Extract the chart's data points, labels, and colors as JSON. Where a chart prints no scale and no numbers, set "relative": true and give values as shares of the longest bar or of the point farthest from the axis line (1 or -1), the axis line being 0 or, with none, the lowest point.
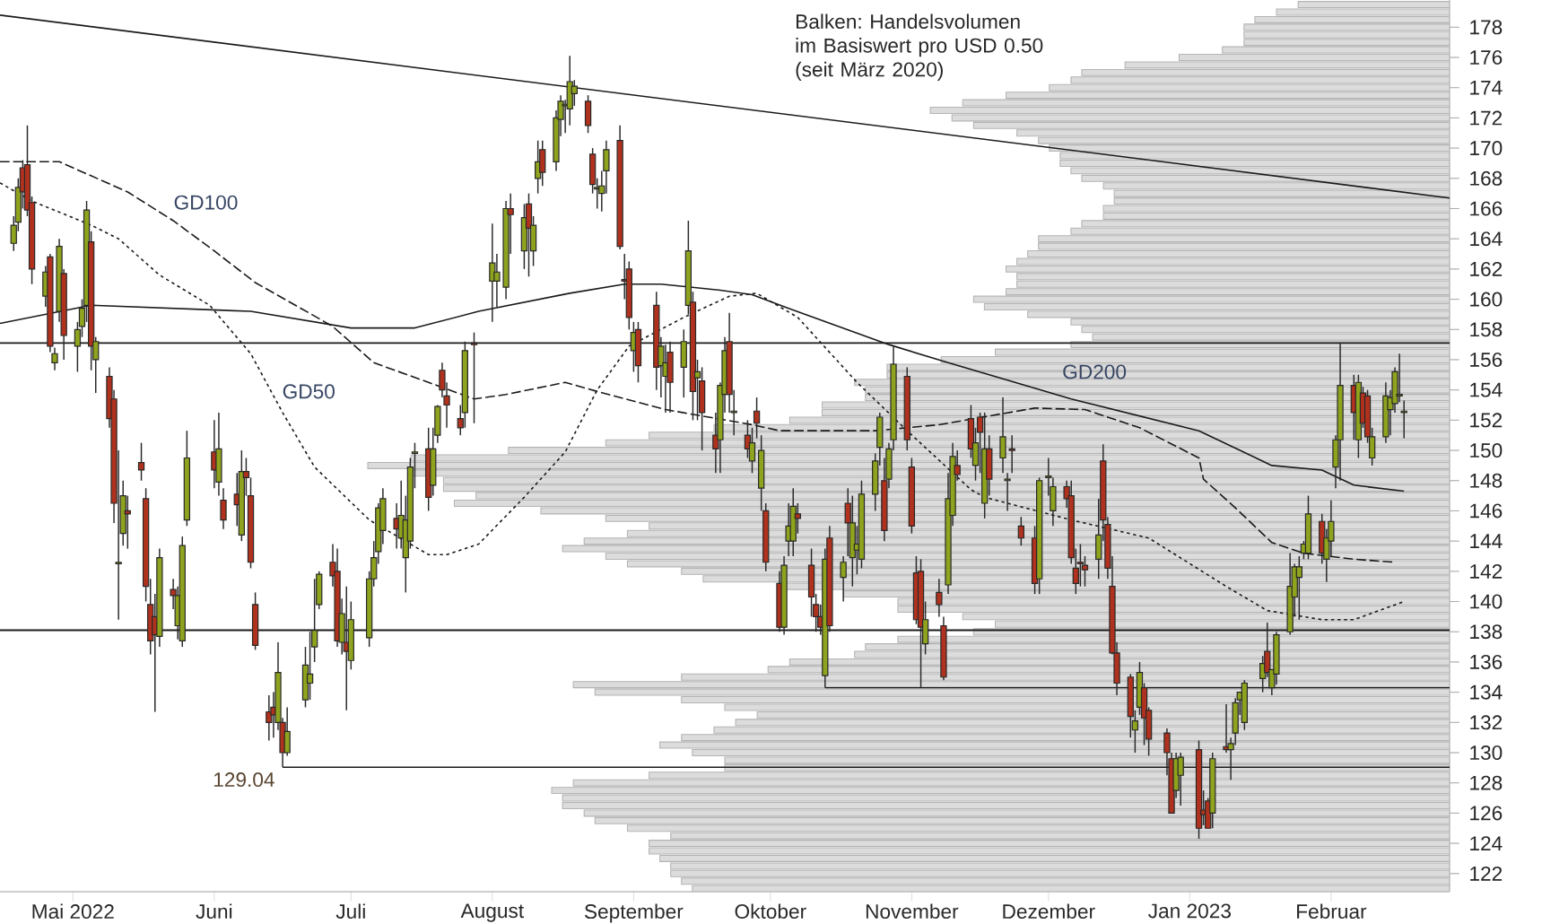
{
  "chart_data": [
    {
      "type": "candlestick",
      "x": [
        "2022-04-18",
        "2022-04-19",
        "2022-04-20",
        "2022-04-21",
        "2022-04-22",
        "2022-04-25",
        "2022-04-26",
        "2022-04-27",
        "2022-04-28",
        "2022-04-29",
        "2022-05-02",
        "2022-05-03",
        "2022-05-04",
        "2022-05-05",
        "2022-05-06",
        "2022-05-09",
        "2022-05-10",
        "2022-05-11",
        "2022-05-12",
        "2022-05-13",
        "2022-05-16",
        "2022-05-17",
        "2022-05-18",
        "2022-05-19",
        "2022-05-20",
        "2022-05-23",
        "2022-05-24",
        "2022-05-25",
        "2022-05-26",
        "2022-06-01",
        "2022-06-02",
        "2022-06-03",
        "2022-06-06",
        "2022-06-07",
        "2022-06-08",
        "2022-06-09",
        "2022-06-10",
        "2022-06-13",
        "2022-06-14",
        "2022-06-15",
        "2022-06-16",
        "2022-06-17",
        "2022-06-21",
        "2022-06-22",
        "2022-06-23",
        "2022-06-24",
        "2022-06-27",
        "2022-06-28",
        "2022-06-29",
        "2022-06-30",
        "2022-07-01",
        "2022-07-05",
        "2022-07-06",
        "2022-07-07",
        "2022-07-08",
        "2022-07-11",
        "2022-07-12",
        "2022-07-13",
        "2022-07-14",
        "2022-07-15",
        "2022-07-18",
        "2022-07-19",
        "2022-07-20",
        "2022-07-21",
        "2022-07-22",
        "2022-07-25",
        "2022-07-26",
        "2022-07-28",
        "2022-08-01",
        "2022-08-02",
        "2022-08-04",
        "2022-08-05",
        "2022-08-08",
        "2022-08-09",
        "2022-08-10",
        "2022-08-11",
        "2022-08-12",
        "2022-08-15",
        "2022-08-16",
        "2022-08-17",
        "2022-08-18",
        "2022-08-19",
        "2022-08-22",
        "2022-08-23",
        "2022-08-24",
        "2022-08-25",
        "2022-08-26",
        "2022-08-29",
        "2022-08-30",
        "2022-08-31",
        "2022-09-01",
        "2022-09-02",
        "2022-09-06",
        "2022-09-07",
        "2022-09-08",
        "2022-09-09",
        "2022-09-12",
        "2022-09-13",
        "2022-09-14",
        "2022-09-15",
        "2022-09-16",
        "2022-09-19",
        "2022-09-20",
        "2022-09-21",
        "2022-09-22",
        "2022-09-23",
        "2022-09-26",
        "2022-09-27",
        "2022-09-28",
        "2022-09-29",
        "2022-09-30",
        "2022-10-03",
        "2022-10-04",
        "2022-10-05",
        "2022-10-06",
        "2022-10-07",
        "2022-10-10",
        "2022-10-11",
        "2022-10-12",
        "2022-10-13",
        "2022-10-14",
        "2022-10-17",
        "2022-10-18",
        "2022-10-19",
        "2022-10-20",
        "2022-10-21",
        "2022-10-24",
        "2022-10-25",
        "2022-10-26",
        "2022-10-27",
        "2022-10-28",
        "2022-10-31",
        "2022-11-01",
        "2022-11-02",
        "2022-11-03",
        "2022-11-04",
        "2022-11-07",
        "2022-11-08",
        "2022-11-09",
        "2022-11-10",
        "2022-11-11",
        "2022-11-14",
        "2022-11-15",
        "2022-11-16",
        "2022-11-17",
        "2022-11-18",
        "2022-11-21",
        "2022-11-22",
        "2022-11-23",
        "2022-11-25",
        "2022-11-28",
        "2022-11-29",
        "2022-12-01",
        "2022-12-02",
        "2022-12-05",
        "2022-12-06",
        "2022-12-07",
        "2022-12-08",
        "2022-12-09",
        "2022-12-12",
        "2022-12-13",
        "2022-12-14",
        "2022-12-15",
        "2022-12-16",
        "2022-12-19",
        "2022-12-20",
        "2022-12-21",
        "2022-12-22",
        "2022-12-23",
        "2022-12-27",
        "2022-12-28",
        "2022-12-29",
        "2022-12-30",
        "2023-01-03",
        "2023-01-04",
        "2023-01-05",
        "2023-01-06",
        "2023-01-09",
        "2023-01-10",
        "2023-01-11",
        "2023-01-12",
        "2023-01-13",
        "2023-01-17",
        "2023-01-18",
        "2023-01-19",
        "2023-01-20",
        "2023-01-23",
        "2023-01-24",
        "2023-01-25",
        "2023-01-26",
        "2023-01-27",
        "2023-01-30",
        "2023-01-31",
        "2023-02-01",
        "2023-02-02",
        "2023-02-03",
        "2023-02-06",
        "2023-02-07",
        "2023-02-08",
        "2023-02-09",
        "2023-02-10",
        "2023-02-13",
        "2023-02-14",
        "2023-02-15",
        "2023-02-16",
        "2023-02-17"
      ],
      "ohlc": [
        [
          163.7,
          165.5,
          163.2,
          164.9
        ],
        [
          165.1,
          168.0,
          164.5,
          167.4
        ],
        [
          168.7,
          169.2,
          166.0,
          167.1
        ],
        [
          168.9,
          171.5,
          165.5,
          165.9
        ],
        [
          166.4,
          166.8,
          161.0,
          162.0
        ],
        [
          160.2,
          162.2,
          159.5,
          161.8
        ],
        [
          162.8,
          163.0,
          156.5,
          156.9
        ],
        [
          155.8,
          156.8,
          155.3,
          156.4
        ],
        [
          159.2,
          164.0,
          158.5,
          163.5
        ],
        [
          161.7,
          162.0,
          156.0,
          157.6
        ],
        [
          156.9,
          158.5,
          155.2,
          158.0
        ],
        [
          158.2,
          160.0,
          157.5,
          159.4
        ],
        [
          159.6,
          166.5,
          158.5,
          165.9
        ],
        [
          163.8,
          164.5,
          155.3,
          156.9
        ],
        [
          156.0,
          157.5,
          153.8,
          157.2
        ],
        [
          154.9,
          155.5,
          151.5,
          152.1
        ],
        [
          153.4,
          154.0,
          145.2,
          146.5
        ],
        [
          142.5,
          150.0,
          138.8,
          142.6
        ],
        [
          144.5,
          148.0,
          143.7,
          147.0
        ],
        [
          146.0,
          147.0,
          143.5,
          145.8
        ],
        [
          149.2,
          150.5,
          148.0,
          148.7
        ],
        [
          146.8,
          147.5,
          140.0,
          141.0
        ],
        [
          139.8,
          141.5,
          136.5,
          137.4
        ],
        [
          139.0,
          140.5,
          132.7,
          137.8
        ],
        [
          137.7,
          143.5,
          137.0,
          142.9
        ],
        [
          140.8,
          141.5,
          139.5,
          140.4
        ],
        [
          138.4,
          141.0,
          137.5,
          140.4
        ],
        [
          137.4,
          144.3,
          137.0,
          143.7
        ],
        [
          145.4,
          151.3,
          145.0,
          149.5
        ],
        [
          149.9,
          152.0,
          147.5,
          148.7
        ],
        [
          147.9,
          152.5,
          147.0,
          150.1
        ],
        [
          146.7,
          147.5,
          144.8,
          145.4
        ],
        [
          147.1,
          148.5,
          145.0,
          146.4
        ],
        [
          144.4,
          150.0,
          144.0,
          148.6
        ],
        [
          148.6,
          149.5,
          147.0,
          148.2
        ],
        [
          147.0,
          148.2,
          142.2,
          142.6
        ],
        [
          139.8,
          140.6,
          136.8,
          137.1
        ],
        [
          132.7,
          133.8,
          130.8,
          132.0
        ],
        [
          133.0,
          134.0,
          131.0,
          132.5
        ],
        [
          132.0,
          137.3,
          131.5,
          135.3
        ],
        [
          132.0,
          132.3,
          129.04,
          130.0
        ],
        [
          130.0,
          133.0,
          129.8,
          131.4
        ],
        [
          133.5,
          137.0,
          133.0,
          135.8
        ],
        [
          134.6,
          138.0,
          133.5,
          135.2
        ],
        [
          137.0,
          141.5,
          136.0,
          138.1
        ],
        [
          139.8,
          142.0,
          139.5,
          141.8
        ],
        [
          142.6,
          143.8,
          141.0,
          141.7
        ],
        [
          142.0,
          143.5,
          137.0,
          137.4
        ],
        [
          137.3,
          140.2,
          136.5,
          139.2
        ],
        [
          137.3,
          141.0,
          132.8,
          136.7
        ],
        [
          136.1,
          140.0,
          135.5,
          138.8
        ],
        [
          137.6,
          142.0,
          137.0,
          141.5
        ],
        [
          141.5,
          144.0,
          141.0,
          142.9
        ],
        [
          143.3,
          146.5,
          142.5,
          146.2
        ],
        [
          144.7,
          147.5,
          143.8,
          146.8
        ],
        [
          145.5,
          146.5,
          143.5,
          144.8
        ],
        [
          144.2,
          148.0,
          143.5,
          145.7
        ],
        [
          142.9,
          147.0,
          140.6,
          145.4
        ],
        [
          144.0,
          149.5,
          143.5,
          148.9
        ],
        [
          149.8,
          150.5,
          147.5,
          149.9
        ],
        [
          150.1,
          151.5,
          146.0,
          146.9
        ],
        [
          147.7,
          151.5,
          147.0,
          150.1
        ],
        [
          151.0,
          153.0,
          150.5,
          152.9
        ],
        [
          155.3,
          155.8,
          153.5,
          154.0
        ],
        [
          153.6,
          154.5,
          151.5,
          153.0
        ],
        [
          152.1,
          153.0,
          151.0,
          151.5
        ],
        [
          152.5,
          157.2,
          151.5,
          156.6
        ],
        [
          157.1,
          157.8,
          151.8,
          157.0
        ],
        [
          161.2,
          165.0,
          158.5,
          162.4
        ],
        [
          161.2,
          163.0,
          159.5,
          161.8
        ],
        [
          160.8,
          166.5,
          160.0,
          166.0
        ],
        [
          166.0,
          167.0,
          163.0,
          165.6
        ],
        [
          163.2,
          166.3,
          162.0,
          165.4
        ],
        [
          166.3,
          167.0,
          161.5,
          164.7
        ],
        [
          163.2,
          165.5,
          162.2,
          164.9
        ],
        [
          168.0,
          170.5,
          167.0,
          169.1
        ],
        [
          169.9,
          170.5,
          167.5,
          168.4
        ],
        [
          169.1,
          172.5,
          168.5,
          172.0
        ],
        [
          171.9,
          173.5,
          170.8,
          173.1
        ],
        [
          172.8,
          173.2,
          171.0,
          172.9
        ],
        [
          172.6,
          176.1,
          171.5,
          174.4
        ],
        [
          173.6,
          174.5,
          172.8,
          174.1
        ],
        [
          173.1,
          173.5,
          171.0,
          171.5
        ],
        [
          169.6,
          170.0,
          167.0,
          167.6
        ],
        [
          167.3,
          168.0,
          166.0,
          167.4
        ],
        [
          167.0,
          168.5,
          165.8,
          167.5
        ],
        [
          168.5,
          170.5,
          167.0,
          169.9
        ],
        [
          170.5,
          171.5,
          163.3,
          163.5
        ],
        [
          161.3,
          163.0,
          160.0,
          161.2
        ],
        [
          162.0,
          162.5,
          158.0,
          158.8
        ],
        [
          156.6,
          158.5,
          155.2,
          157.8
        ],
        [
          158.0,
          158.5,
          154.5,
          155.6
        ],
        [
          159.6,
          160.5,
          154.0,
          155.5
        ],
        [
          155.6,
          157.5,
          153.5,
          156.9
        ],
        [
          154.9,
          157.0,
          152.5,
          155.8
        ],
        [
          156.5,
          157.2,
          152.5,
          154.5
        ],
        [
          155.5,
          158.0,
          153.5,
          157.2
        ],
        [
          159.6,
          165.2,
          159.0,
          163.2
        ],
        [
          159.8,
          160.5,
          152.0,
          153.9
        ],
        [
          154.8,
          156.0,
          152.0,
          155.2
        ],
        [
          154.6,
          155.5,
          150.0,
          152.5
        ],
        [
          151.0,
          152.5,
          148.5,
          150.1
        ],
        [
          150.7,
          154.5,
          148.5,
          154.3
        ],
        [
          153.7,
          157.5,
          152.5,
          156.6
        ],
        [
          157.2,
          159.1,
          152.5,
          153.7
        ],
        [
          152.5,
          154.0,
          151.0,
          152.6
        ],
        [
          151.0,
          152.0,
          149.5,
          150.1
        ],
        [
          149.3,
          151.5,
          148.5,
          150.5
        ],
        [
          152.6,
          153.5,
          150.8,
          151.8
        ],
        [
          147.5,
          151.0,
          146.0,
          150.0
        ],
        [
          146.0,
          146.5,
          142.0,
          142.6
        ],
        [
          141.2,
          142.0,
          138.0,
          138.3
        ],
        [
          138.3,
          143.0,
          137.8,
          142.4
        ],
        [
          144.0,
          146.5,
          143.0,
          145.0
        ],
        [
          144.0,
          147.5,
          143.0,
          146.3
        ],
        [
          145.8,
          146.5,
          144.5,
          145.5
        ],
        [
          142.4,
          143.5,
          139.0,
          140.3
        ],
        [
          139.8,
          140.5,
          138.0,
          139.0
        ],
        [
          139.0,
          139.8,
          137.8,
          138.3
        ],
        [
          135.1,
          143.5,
          134.3,
          142.8
        ],
        [
          144.2,
          145.0,
          138.0,
          138.4
        ],
        [
          141.6,
          143.0,
          140.0,
          142.6
        ],
        [
          146.5,
          147.5,
          143.0,
          145.2
        ],
        [
          142.9,
          147.0,
          141.0,
          145.2
        ],
        [
          143.4,
          145.0,
          141.8,
          143.8
        ],
        [
          142.8,
          148.0,
          142.2,
          147.1
        ],
        [
          147.1,
          149.8,
          146.0,
          149.3
        ],
        [
          150.2,
          152.5,
          149.0,
          152.2
        ],
        [
          148.0,
          149.5,
          144.0,
          144.7
        ],
        [
          148.1,
          150.5,
          147.5,
          150.1
        ],
        [
          150.7,
          156.9,
          150.0,
          155.7
        ],
        [
          154.9,
          155.5,
          150.0,
          150.7
        ],
        [
          148.9,
          149.5,
          144.5,
          145.0
        ],
        [
          141.9,
          143.0,
          138.5,
          138.8
        ],
        [
          142.0,
          142.8,
          134.3,
          138.3
        ],
        [
          137.2,
          140.0,
          136.5,
          138.8
        ],
        [
          140.6,
          141.5,
          139.0,
          139.8
        ],
        [
          138.4,
          139.0,
          134.8,
          135.0
        ],
        [
          141.1,
          148.5,
          140.5,
          146.8
        ],
        [
          145.7,
          150.5,
          145.0,
          149.6
        ],
        [
          149.0,
          150.0,
          148.0,
          148.4
        ],
        [
          152.1,
          153.0,
          149.5,
          150.1
        ],
        [
          149.0,
          151.5,
          148.0,
          150.5
        ],
        [
          152.2,
          152.5,
          148.5,
          151.2
        ],
        [
          146.5,
          152.5,
          145.5,
          150.1
        ],
        [
          150.1,
          151.0,
          147.0,
          148.1
        ],
        [
          149.5,
          153.5,
          148.5,
          150.9
        ],
        [
          148.0,
          148.5,
          146.0,
          148.1
        ],
        [
          150.1,
          151.0,
          148.5,
          150.0
        ],
        [
          145.0,
          145.6,
          143.7,
          144.2
        ],
        [
          144.2,
          145.0,
          140.5,
          141.2
        ],
        [
          141.5,
          148.2,
          140.5,
          148.0
        ],
        [
          148.2,
          149.5,
          147.0,
          148.3
        ],
        [
          146.0,
          148.2,
          145.0,
          147.6
        ],
        [
          147.6,
          148.0,
          146.2,
          146.8
        ],
        [
          147.0,
          148.0,
          142.5,
          142.9
        ],
        [
          142.2,
          143.5,
          140.5,
          141.2
        ],
        [
          142.6,
          143.8,
          141.0,
          142.5
        ],
        [
          142.4,
          143.0,
          141.0,
          142.1
        ],
        [
          142.8,
          146.8,
          141.5,
          144.4
        ],
        [
          149.3,
          150.4,
          144.0,
          145.4
        ],
        [
          145.1,
          145.6,
          141.5,
          142.2
        ],
        [
          141.0,
          143.0,
          136.5,
          136.6
        ],
        [
          136.6,
          137.3,
          133.8,
          134.6
        ],
        [
          135.0,
          135.2,
          131.0,
          132.4
        ],
        [
          131.5,
          132.8,
          130.0,
          132.1
        ],
        [
          133.0,
          136.0,
          132.5,
          135.3
        ],
        [
          134.3,
          134.6,
          130.5,
          132.3
        ],
        [
          132.8,
          133.0,
          129.8,
          130.9
        ],
        [
          131.3,
          131.6,
          128.5,
          130.0
        ],
        [
          129.6,
          130.0,
          126.0,
          126.0
        ],
        [
          127.5,
          130.0,
          127.0,
          129.6
        ],
        [
          128.5,
          130.0,
          126.5,
          129.7
        ],
        [
          130.2,
          130.8,
          124.3,
          125.0
        ],
        [
          126.2,
          127.5,
          125.2,
          125.9
        ],
        [
          126.8,
          127.0,
          125.0,
          125.0
        ],
        [
          126.0,
          130.0,
          125.0,
          129.6
        ],
        [
          130.4,
          133.2,
          130.0,
          130.2
        ],
        [
          130.2,
          131.0,
          128.2,
          130.6
        ],
        [
          131.3,
          133.6,
          130.5,
          133.3
        ],
        [
          133.5,
          134.0,
          132.5,
          134.0
        ],
        [
          132.0,
          134.8,
          131.5,
          134.6
        ],
        [
          134.9,
          136.4,
          134.0,
          135.9
        ],
        [
          136.7,
          138.6,
          135.0,
          135.3
        ],
        [
          134.3,
          135.5,
          133.8,
          135.5
        ],
        [
          135.2,
          138.0,
          134.5,
          137.8
        ],
        [
          138.0,
          143.2,
          137.8,
          141.0
        ],
        [
          140.3,
          142.5,
          139.0,
          142.3
        ],
        [
          141.6,
          143.0,
          138.8,
          142.3
        ],
        [
          143.2,
          144.0,
          142.8,
          143.8
        ],
        [
          143.2,
          147.0,
          142.8,
          145.8
        ],
        [
          145.3,
          145.8,
          142.5,
          143.2
        ],
        [
          142.8,
          144.8,
          141.3,
          144.2
        ],
        [
          144.0,
          146.7,
          143.0,
          145.3
        ],
        [
          148.9,
          151.0,
          147.5,
          150.7
        ],
        [
          150.7,
          157.1,
          148.0,
          154.3
        ],
        [
          154.3,
          155.0,
          150.7,
          152.5
        ],
        [
          150.7,
          155.0,
          149.5,
          154.5
        ],
        [
          153.8,
          154.2,
          151.5,
          151.8
        ],
        [
          153.6,
          154.0,
          150.5,
          150.9
        ],
        [
          149.5,
          151.5,
          149.0,
          150.9
        ],
        [
          150.9,
          154.5,
          150.5,
          153.6
        ],
        [
          152.7,
          154.0,
          151.0,
          153.5
        ],
        [
          153.1,
          155.5,
          152.5,
          155.2
        ],
        [
          153.6,
          156.4,
          153.2,
          153.7
        ],
        [
          152.5,
          153.3,
          150.8,
          152.6
        ]
      ],
      "colors": [
        "#8fa31e",
        "#8fa31e",
        "#b0321e",
        "#b0321e",
        "#b0321e",
        "#8fa31e",
        "#b0321e",
        "#8fa31e",
        "#8fa31e",
        "#b0321e",
        "#8fa31e",
        "#8fa31e",
        "#8fa31e",
        "#b0321e",
        "#8fa31e",
        "#b0321e",
        "#b0321e",
        "#8fa31e",
        "#8fa31e",
        "#b0321e",
        "#b0321e",
        "#b0321e",
        "#b0321e",
        "#b0321e",
        "#8fa31e",
        "#b0321e",
        "#8fa31e",
        "#8fa31e",
        "#8fa31e",
        "#b0321e",
        "#8fa31e",
        "#b0321e",
        "#b0321e",
        "#8fa31e",
        "#b0321e",
        "#b0321e",
        "#b0321e",
        "#b0321e",
        "#b0321e",
        "#8fa31e",
        "#b0321e",
        "#8fa31e",
        "#8fa31e",
        "#8fa31e",
        "#8fa31e",
        "#8fa31e",
        "#b0321e",
        "#b0321e",
        "#8fa31e",
        "#b0321e",
        "#8fa31e",
        "#8fa31e",
        "#8fa31e",
        "#8fa31e",
        "#8fa31e",
        "#b0321e",
        "#8fa31e",
        "#8fa31e",
        "#8fa31e",
        "#8fa31e",
        "#b0321e",
        "#8fa31e",
        "#8fa31e",
        "#b0321e",
        "#b0321e",
        "#b0321e",
        "#8fa31e",
        "#b0321e",
        "#8fa31e",
        "#8fa31e",
        "#8fa31e",
        "#b0321e",
        "#8fa31e",
        "#b0321e",
        "#8fa31e",
        "#8fa31e",
        "#b0321e",
        "#8fa31e",
        "#8fa31e",
        "#8fa31e",
        "#8fa31e",
        "#8fa31e",
        "#b0321e",
        "#b0321e",
        "#8fa31e",
        "#8fa31e",
        "#8fa31e",
        "#b0321e",
        "#b0321e",
        "#b0321e",
        "#8fa31e",
        "#b0321e",
        "#b0321e",
        "#8fa31e",
        "#8fa31e",
        "#b0321e",
        "#8fa31e",
        "#8fa31e",
        "#b0321e",
        "#8fa31e",
        "#b0321e",
        "#b0321e",
        "#8fa31e",
        "#8fa31e",
        "#b0321e",
        "#8fa31e",
        "#b0321e",
        "#8fa31e",
        "#b0321e",
        "#8fa31e",
        "#b0321e",
        "#b0321e",
        "#8fa31e",
        "#8fa31e",
        "#8fa31e",
        "#b0321e",
        "#b0321e",
        "#b0321e",
        "#b0321e",
        "#8fa31e",
        "#b0321e",
        "#8fa31e",
        "#b0321e",
        "#8fa31e",
        "#8fa31e",
        "#8fa31e",
        "#8fa31e",
        "#8fa31e",
        "#b0321e",
        "#8fa31e",
        "#8fa31e",
        "#b0321e",
        "#b0321e",
        "#b0321e",
        "#b0321e",
        "#8fa31e",
        "#b0321e",
        "#b0321e",
        "#8fa31e",
        "#8fa31e",
        "#b0321e",
        "#b0321e",
        "#8fa31e",
        "#b0321e",
        "#8fa31e",
        "#b0321e",
        "#8fa31e",
        "#8fa31e",
        "#b0321e",
        "#b0321e",
        "#b0321e",
        "#8fa31e",
        "#8fa31e",
        "#8fa31e",
        "#b0321e",
        "#b0321e",
        "#b0321e",
        "#b0321e",
        "#b0321e",
        "#8fa31e",
        "#b0321e",
        "#b0321e",
        "#b0321e",
        "#b0321e",
        "#b0321e",
        "#8fa31e",
        "#8fa31e",
        "#b0321e",
        "#b0321e",
        "#b0321e",
        "#b0321e",
        "#8fa31e",
        "#8fa31e",
        "#b0321e",
        "#b0321e",
        "#b0321e",
        "#8fa31e",
        "#b0321e",
        "#8fa31e",
        "#8fa31e",
        "#8fa31e",
        "#8fa31e",
        "#8fa31e",
        "#b0321e",
        "#8fa31e",
        "#8fa31e",
        "#8fa31e",
        "#8fa31e",
        "#8fa31e",
        "#8fa31e",
        "#8fa31e",
        "#b0321e",
        "#8fa31e",
        "#8fa31e",
        "#8fa31e",
        "#8fa31e",
        "#b0321e",
        "#8fa31e",
        "#b0321e",
        "#b0321e",
        "#8fa31e",
        "#8fa31e",
        "#8fa31e",
        "#8fa31e",
        "#8fa31e",
        "#8fa31e"
      ],
      "series": [
        {
          "name": "GD200",
          "type": "line",
          "color": "#1a1a1a",
          "line_style": "solid",
          "x": [
            "2022-04-15",
            "2022-05-05",
            "2022-06-09",
            "2022-07-01",
            "2022-07-15",
            "2022-07-29",
            "2022-08-18",
            "2022-08-30",
            "2022-09-07",
            "2022-09-20",
            "2022-09-27",
            "2022-10-05",
            "2022-10-27",
            "2022-11-09",
            "2022-12-06",
            "2023-01-03",
            "2023-01-19",
            "2023-01-30",
            "2023-02-06",
            "2023-02-17"
          ],
          "values": [
            158.4,
            159.6,
            159.2,
            158.1,
            158.1,
            159.2,
            160.4,
            161.0,
            161.0,
            160.6,
            160.3,
            159.4,
            157.0,
            155.8,
            153.4,
            151.3,
            149.0,
            148.7,
            147.7,
            147.3
          ]
        },
        {
          "name": "GD100",
          "type": "line",
          "color": "#1a1a1a",
          "line_style": "dashed",
          "x": [
            "2022-04-15",
            "2022-04-28",
            "2022-05-13",
            "2022-05-23",
            "2022-06-01",
            "2022-06-10",
            "2022-06-20",
            "2022-06-27",
            "2022-07-06",
            "2022-07-18",
            "2022-07-28",
            "2022-08-04",
            "2022-08-17",
            "2022-08-24",
            "2022-09-08",
            "2022-09-27",
            "2022-10-03",
            "2022-10-24",
            "2022-11-07",
            "2022-11-28",
            "2022-12-09",
            "2022-12-21",
            "2023-01-03",
            "2023-01-04",
            "2023-01-11",
            "2023-01-19",
            "2023-01-26",
            "2023-02-06",
            "2023-02-15"
          ],
          "values": [
            169.1,
            169.1,
            167.1,
            165.2,
            163.2,
            161.1,
            159.4,
            158.2,
            155.8,
            154.5,
            153.4,
            153.7,
            154.5,
            153.9,
            152.7,
            151.7,
            151.3,
            151.3,
            151.7,
            152.8,
            152.7,
            151.5,
            149.5,
            148.1,
            146.2,
            143.9,
            143.2,
            142.8,
            142.6
          ]
        },
        {
          "name": "GD50",
          "type": "line",
          "color": "#1a1a1a",
          "line_style": "dotted",
          "x": [
            "2022-04-15",
            "2022-04-22",
            "2022-05-05",
            "2022-05-11",
            "2022-05-20",
            "2022-05-31",
            "2022-06-09",
            "2022-06-16",
            "2022-06-23",
            "2022-07-05",
            "2022-07-18",
            "2022-07-22",
            "2022-07-29",
            "2022-08-08",
            "2022-08-17",
            "2022-08-24",
            "2022-08-31",
            "2022-09-12",
            "2022-09-22",
            "2022-09-28",
            "2022-10-07",
            "2022-10-20",
            "2022-10-31",
            "2022-11-14",
            "2022-11-17",
            "2022-12-06",
            "2022-12-23",
            "2023-01-09",
            "2023-01-18",
            "2023-01-30",
            "2023-02-06",
            "2023-02-17"
          ],
          "values": [
            167.7,
            166.5,
            164.9,
            164.0,
            161.6,
            159.6,
            156.4,
            152.5,
            148.9,
            145.4,
            143.1,
            143.1,
            143.8,
            146.9,
            149.9,
            154.0,
            156.9,
            158.8,
            160.2,
            160.4,
            158.8,
            154.5,
            151.3,
            147.4,
            146.9,
            145.4,
            144.2,
            141.0,
            139.4,
            138.8,
            138.8,
            140.0
          ]
        },
        {
          "type": "line",
          "color": "#1a1a1a",
          "line_style": "solid",
          "x": [
            "2022-04-15",
            "2023-02-27"
          ],
          "values": [
            178.8,
            166.7
          ]
        },
        {
          "type": "line",
          "color": "#1a1a1a",
          "line_style": "solid",
          "x": [
            "2022-10-13",
            "2023-02-27"
          ],
          "values": [
            134.3,
            134.3
          ]
        },
        {
          "type": "line",
          "color": "#1a1a1a",
          "line_style": "solid",
          "x": [
            "2022-06-16",
            "2023-02-27"
          ],
          "values": [
            129.04,
            129.04
          ]
        }
      ],
      "ref_lines": [
        {
          "axis": "y",
          "value": 157.1,
          "color": "#1a1a1a"
        },
        {
          "axis": "y",
          "value": 138.1,
          "color": "#1a1a1a"
        }
      ],
      "annotations": [
        "Balken: Handelsvolumen im Basiswert pro USD 0.50 (seit März 2020)",
        {
          "text": "129.04",
          "x": "2022-06-16",
          "y": 129.04
        }
      ],
      "xlim": [
        "2022-04-15",
        "2023-02-27"
      ],
      "ylim": [
        120.8,
        179.8
      ],
      "xticks": [
        {
          "value": "2022-05-01",
          "label": "Mai 2022"
        },
        {
          "value": "2022-06-01",
          "label": "Juni"
        },
        {
          "value": "2022-07-01",
          "label": "Juli"
        },
        {
          "value": "2022-08-01",
          "label": "August"
        },
        {
          "value": "2022-09-01",
          "label": "September"
        },
        {
          "value": "2022-10-01",
          "label": "Oktober"
        },
        {
          "value": "2022-11-01",
          "label": "November"
        },
        {
          "value": "2022-12-01",
          "label": "Dezember"
        },
        {
          "value": "2023-01-01",
          "label": "Jan 2023"
        },
        {
          "value": "2023-02-01",
          "label": "Februar"
        }
      ],
      "yticks": [
        122,
        124,
        126,
        128,
        130,
        132,
        134,
        136,
        138,
        140,
        142,
        144,
        146,
        148,
        150,
        152,
        154,
        156,
        158,
        160,
        162,
        164,
        166,
        168,
        170,
        172,
        174,
        176,
        178
      ],
      "tick_labels": "xy"
    },
    {
      "type": "bar",
      "orientation": "horizontal",
      "relative": true,
      "color": "#dcdcdc",
      "x": [
        179.5,
        179,
        178.5,
        178,
        177.5,
        177,
        176.5,
        176,
        175.5,
        175,
        174.5,
        174,
        173.5,
        173,
        172.5,
        172,
        171.5,
        171,
        170.5,
        170,
        169.5,
        169,
        168.5,
        168,
        167.5,
        167,
        166.5,
        166,
        165.5,
        165,
        164.5,
        164,
        163.5,
        163,
        162.5,
        162,
        161.5,
        161,
        160.5,
        160,
        159.5,
        159,
        158.5,
        158,
        157.5,
        157,
        156.5,
        156,
        155.5,
        155,
        154.5,
        154,
        153.5,
        153,
        152.5,
        152,
        151.5,
        151,
        150.5,
        150,
        149.5,
        149,
        148.5,
        148,
        147.5,
        147,
        146.5,
        146,
        145.5,
        145,
        144.5,
        144,
        143.5,
        143,
        142.5,
        142,
        141.5,
        141,
        140.5,
        140,
        139.5,
        139,
        138.5,
        138,
        137.5,
        137,
        136.5,
        136,
        135.5,
        135,
        134.5,
        134,
        133.5,
        133,
        132.5,
        132,
        131.5,
        131,
        130.5,
        130,
        129.5,
        129,
        128.5,
        128,
        127.5,
        127,
        126.5,
        126,
        125.5,
        125,
        124.5,
        124,
        123.5,
        123,
        122.5,
        122,
        121.5,
        121
      ],
      "ylim": [
        120.8,
        179.8
      ],
      "yticks": [
        122,
        124,
        126,
        128,
        130,
        132,
        134,
        136,
        138,
        140,
        142,
        144,
        146,
        148,
        150,
        152,
        154,
        156,
        158,
        160,
        162,
        164,
        166,
        168,
        170,
        172,
        174,
        176,
        178
      ],
      "tick_labels": false,
      "values": [
        0.14,
        0.16,
        0.18,
        0.19,
        0.19,
        0.19,
        0.21,
        0.25,
        0.3,
        0.34,
        0.35,
        0.37,
        0.41,
        0.45,
        0.48,
        0.46,
        0.44,
        0.4,
        0.38,
        0.37,
        0.36,
        0.36,
        0.35,
        0.34,
        0.32,
        0.31,
        0.31,
        0.32,
        0.32,
        0.34,
        0.35,
        0.38,
        0.38,
        0.39,
        0.4,
        0.41,
        0.4,
        0.4,
        0.41,
        0.44,
        0.43,
        0.39,
        0.35,
        0.34,
        0.33,
        0.35,
        0.42,
        0.47,
        0.52,
        0.52,
        0.55,
        0.54,
        0.54,
        0.58,
        0.58,
        0.61,
        0.68,
        0.74,
        0.78,
        0.87,
        0.96,
        1,
        0.96,
        0.93,
        0.93,
        0.9,
        0.92,
        0.84,
        0.78,
        0.74,
        0.76,
        0.8,
        0.82,
        0.78,
        0.76,
        0.71,
        0.69,
        0.62,
        0.56,
        0.51,
        0.51,
        0.45,
        0.42,
        0.44,
        0.51,
        0.54,
        0.55,
        0.61,
        0.63,
        0.71,
        0.81,
        0.79,
        0.71,
        0.67,
        0.64,
        0.66,
        0.68,
        0.71,
        0.73,
        0.7,
        0.67,
        0.67,
        0.74,
        0.81,
        0.83,
        0.82,
        0.82,
        0.8,
        0.79,
        0.76,
        0.72,
        0.74,
        0.74,
        0.73,
        0.72,
        0.72,
        0.71,
        0.7
      ]
    }
  ]
}
